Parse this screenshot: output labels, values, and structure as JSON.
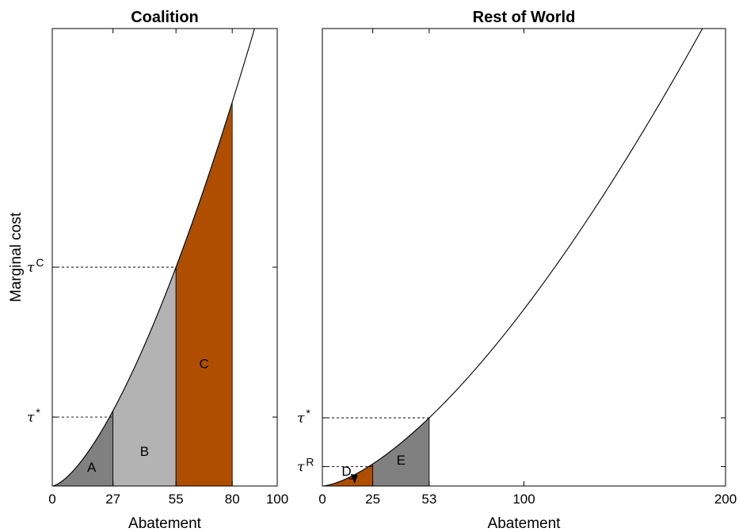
{
  "chart_data": [
    {
      "type": "area",
      "title": "Coalition",
      "xlabel": "Abatement",
      "ylabel": "Marginal cost",
      "xlim": [
        0,
        100
      ],
      "x_ticks": [
        0,
        27,
        55,
        80,
        100
      ],
      "y_tick_labels": [
        {
          "symbol": "τ",
          "sup": "*",
          "level": 0.315
        },
        {
          "symbol": "τ",
          "sup": "C",
          "level": 1.0
        }
      ],
      "curve": {
        "form": "power",
        "exponent": 1.5,
        "passes_through": [
          55,
          1.0
        ]
      },
      "regions": [
        {
          "label": "A",
          "x_from": 0,
          "x_to": 27,
          "color": "#808080"
        },
        {
          "label": "B",
          "x_from": 27,
          "x_to": 55,
          "color": "#b3b3b3"
        },
        {
          "label": "C",
          "x_from": 55,
          "x_to": 80,
          "color": "#b04e00"
        }
      ],
      "guides": [
        {
          "x": 27,
          "level": 0.315
        },
        {
          "x": 55,
          "level": 1.0
        }
      ]
    },
    {
      "type": "area",
      "title": "Rest of World",
      "xlabel": "Abatement",
      "xlim": [
        0,
        200
      ],
      "x_ticks": [
        0,
        25,
        53,
        100,
        200
      ],
      "y_tick_labels": [
        {
          "symbol": "τ",
          "sup": "*",
          "level": 0.315
        },
        {
          "symbol": "τ",
          "sup": "R",
          "level": 0.09
        }
      ],
      "curve": {
        "form": "power",
        "exponent": 1.5,
        "passes_through": [
          53,
          0.315
        ]
      },
      "regions": [
        {
          "label": "D",
          "x_from": 0,
          "x_to": 25,
          "color": "#b04e00"
        },
        {
          "label": "E",
          "x_from": 25,
          "x_to": 53,
          "color": "#808080"
        }
      ],
      "guides": [
        {
          "x": 53,
          "level": 0.315
        },
        {
          "x": 25,
          "level": 0.09
        }
      ]
    }
  ]
}
